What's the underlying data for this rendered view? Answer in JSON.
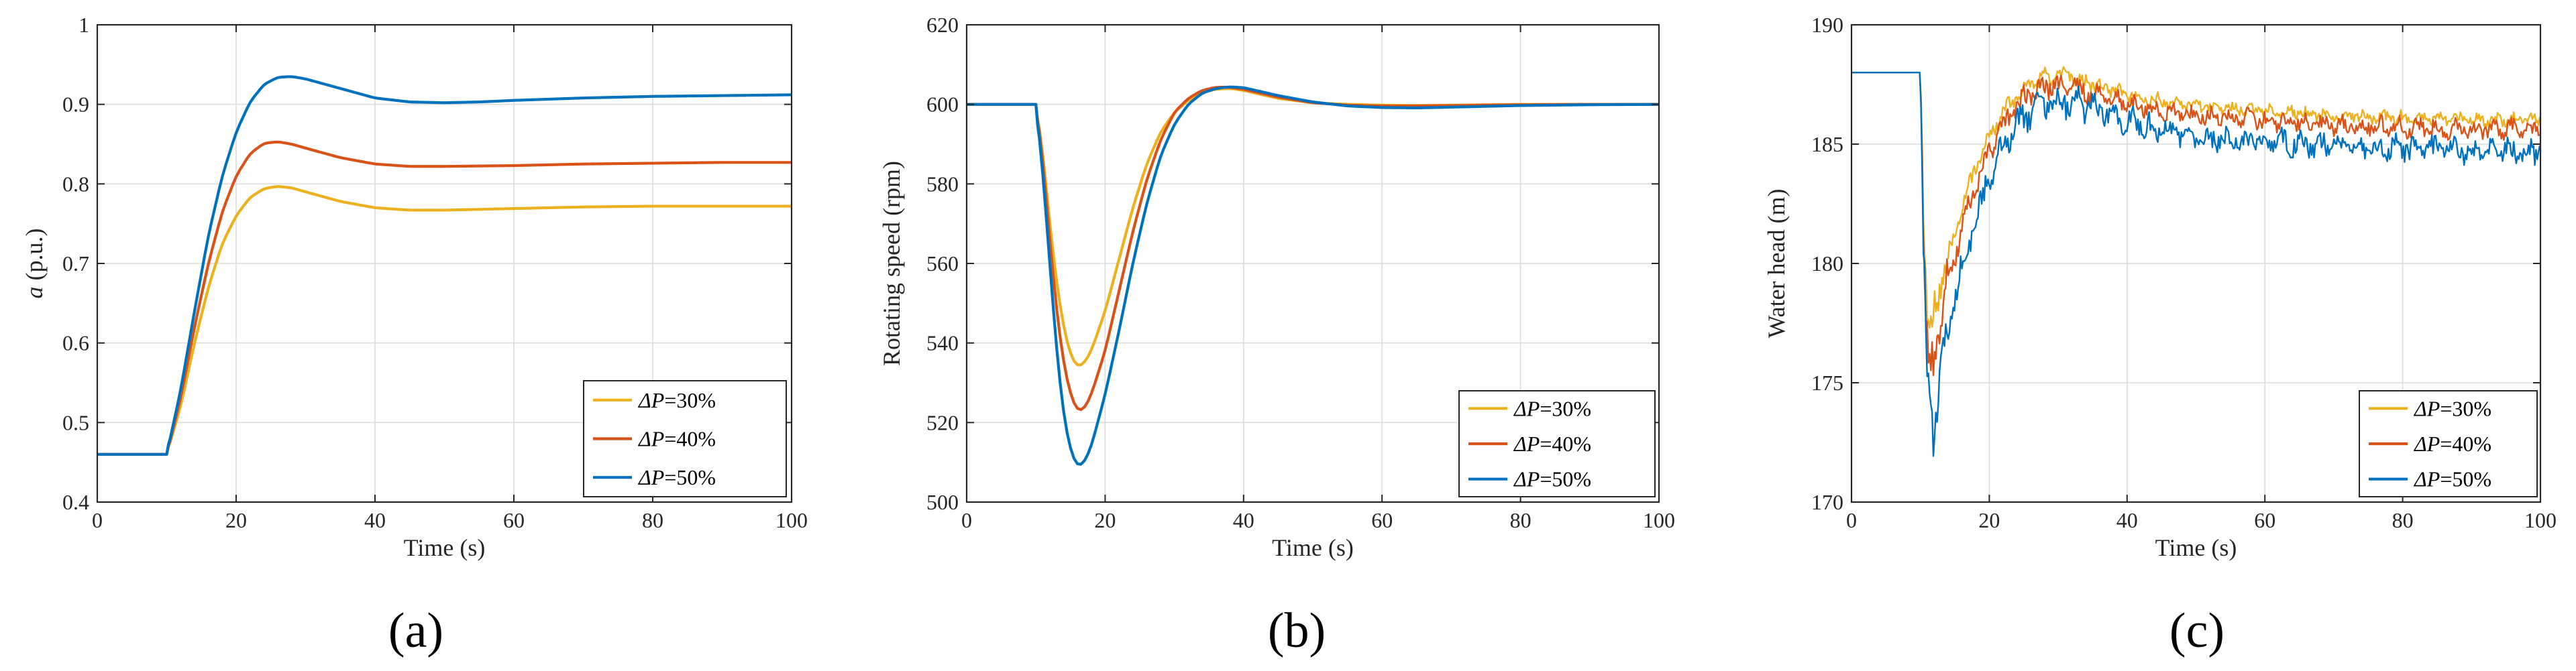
{
  "chart_data": [
    {
      "type": "line",
      "panel_label": "(a)",
      "title": "",
      "xlabel": "Time (s)",
      "ylabel_var": "a",
      "ylabel_unit": " (p.u.)",
      "xlim": [
        0,
        100
      ],
      "ylim": [
        0.4,
        1
      ],
      "xticks": [
        0,
        20,
        40,
        60,
        80,
        100
      ],
      "xtick_labels": [
        "0",
        "20",
        "40",
        "60",
        "80",
        "100"
      ],
      "yticks": [
        0.4,
        0.5,
        0.6,
        0.7,
        0.8,
        0.9,
        1
      ],
      "ytick_labels": [
        "0.4",
        "0.5",
        "0.6",
        "0.7",
        "0.8",
        "0.9",
        "1"
      ],
      "grid": true,
      "legend_position": "bottom-right",
      "series": [
        {
          "name": "ΔP=30%",
          "name_var": "ΔP",
          "name_rest": "=30%",
          "color": "#EDB120",
          "x": [
            0,
            10,
            12,
            14,
            16,
            18,
            20,
            22,
            24,
            26,
            28,
            30,
            35,
            40,
            45,
            50,
            60,
            70,
            80,
            90,
            100
          ],
          "y": [
            0.46,
            0.46,
            0.52,
            0.6,
            0.67,
            0.725,
            0.76,
            0.783,
            0.794,
            0.797,
            0.795,
            0.79,
            0.778,
            0.77,
            0.767,
            0.767,
            0.769,
            0.771,
            0.772,
            0.772,
            0.772
          ]
        },
        {
          "name": "ΔP=40%",
          "name_var": "ΔP",
          "name_rest": "=40%",
          "color": "#D95319",
          "x": [
            0,
            10,
            12,
            14,
            16,
            18,
            20,
            22,
            24,
            26,
            28,
            30,
            35,
            40,
            45,
            50,
            60,
            70,
            80,
            90,
            100
          ],
          "y": [
            0.46,
            0.46,
            0.53,
            0.62,
            0.7,
            0.765,
            0.81,
            0.838,
            0.851,
            0.853,
            0.85,
            0.845,
            0.833,
            0.825,
            0.822,
            0.822,
            0.823,
            0.825,
            0.826,
            0.827,
            0.827
          ]
        },
        {
          "name": "ΔP=50%",
          "name_var": "ΔP",
          "name_rest": "=50%",
          "color": "#0072BD",
          "x": [
            0,
            10,
            12,
            14,
            16,
            18,
            20,
            22,
            24,
            26,
            28,
            30,
            35,
            40,
            45,
            50,
            55,
            60,
            70,
            80,
            90,
            100
          ],
          "y": [
            0.46,
            0.46,
            0.54,
            0.64,
            0.735,
            0.81,
            0.865,
            0.903,
            0.925,
            0.934,
            0.935,
            0.932,
            0.92,
            0.908,
            0.903,
            0.902,
            0.903,
            0.905,
            0.908,
            0.91,
            0.911,
            0.912
          ]
        }
      ]
    },
    {
      "type": "line",
      "panel_label": "(b)",
      "title": "",
      "xlabel": "Time (s)",
      "ylabel": "Rotating speed (rpm)",
      "xlim": [
        0,
        100
      ],
      "ylim": [
        500,
        620
      ],
      "xticks": [
        0,
        20,
        40,
        60,
        80,
        100
      ],
      "xtick_labels": [
        "0",
        "20",
        "40",
        "60",
        "80",
        "100"
      ],
      "yticks": [
        500,
        520,
        540,
        560,
        580,
        600,
        620
      ],
      "ytick_labels": [
        "500",
        "520",
        "540",
        "560",
        "580",
        "600",
        "620"
      ],
      "grid": true,
      "legend_position": "bottom-right",
      "series": [
        {
          "name": "ΔP=30%",
          "name_var": "ΔP",
          "name_rest": "=30%",
          "color": "#EDB120",
          "x": [
            0,
            10,
            11,
            12,
            13,
            14,
            15,
            16,
            17,
            18,
            20,
            22,
            24,
            26,
            28,
            30,
            32,
            34,
            36,
            38,
            40,
            45,
            50,
            55,
            60,
            65,
            70,
            80,
            90,
            100
          ],
          "y": [
            600,
            600,
            588,
            570,
            555,
            544,
            537,
            534,
            535,
            538,
            548,
            561,
            574,
            585,
            593,
            598,
            601,
            603,
            603.8,
            604,
            603.5,
            601.5,
            600.4,
            600,
            599.8,
            599.7,
            599.8,
            600,
            600,
            600
          ]
        },
        {
          "name": "ΔP=40%",
          "name_var": "ΔP",
          "name_rest": "=40%",
          "color": "#D95319",
          "x": [
            0,
            10,
            11,
            12,
            13,
            14,
            15,
            16,
            17,
            18,
            20,
            22,
            24,
            26,
            28,
            30,
            32,
            34,
            36,
            38,
            40,
            45,
            50,
            55,
            60,
            65,
            70,
            80,
            90,
            100
          ],
          "y": [
            600,
            600,
            586,
            566,
            548,
            535,
            527,
            523,
            523.5,
            527,
            538,
            553,
            568,
            581,
            591,
            598,
            601.5,
            603.5,
            604.3,
            604.3,
            603.8,
            601.8,
            600.4,
            599.8,
            599.6,
            599.6,
            599.7,
            599.9,
            600,
            600
          ]
        },
        {
          "name": "ΔP=50%",
          "name_var": "ΔP",
          "name_rest": "=50%",
          "color": "#0072BD",
          "x": [
            0,
            10,
            11,
            12,
            13,
            14,
            15,
            16,
            17,
            18,
            20,
            22,
            24,
            26,
            28,
            30,
            32,
            34,
            36,
            38,
            40,
            45,
            50,
            55,
            60,
            65,
            70,
            80,
            90,
            100
          ],
          "y": [
            600,
            600,
            583,
            560,
            538,
            522,
            513,
            509,
            510,
            514,
            527,
            543,
            560,
            575,
            587,
            595,
            600,
            602.8,
            604,
            604.4,
            604.2,
            602.2,
            600.6,
            599.6,
            599.2,
            599.1,
            599.3,
            599.7,
            599.9,
            600
          ]
        }
      ]
    },
    {
      "type": "line",
      "panel_label": "(c)",
      "title": "",
      "xlabel": "Time (s)",
      "ylabel": "Water head (m)",
      "xlim": [
        0,
        100
      ],
      "ylim": [
        170,
        190
      ],
      "xticks": [
        0,
        20,
        40,
        60,
        80,
        100
      ],
      "xtick_labels": [
        "0",
        "20",
        "40",
        "60",
        "80",
        "100"
      ],
      "yticks": [
        170,
        175,
        180,
        185,
        190
      ],
      "ytick_labels": [
        "170",
        "175",
        "180",
        "185",
        "190"
      ],
      "grid": true,
      "legend_position": "bottom-right",
      "series": [
        {
          "name": "ΔP=30%",
          "name_var": "ΔP",
          "name_rest": "=30%",
          "color": "#EDB120",
          "x": [
            0,
            10,
            10.5,
            11,
            11.5,
            12,
            13,
            14,
            16,
            18,
            20,
            22,
            24,
            26,
            28,
            30,
            32,
            35,
            40,
            45,
            50,
            60,
            70,
            80,
            90,
            100
          ],
          "y": [
            188,
            188,
            182,
            177.5,
            177,
            178,
            179.2,
            180.3,
            182.3,
            184,
            185.3,
            186.3,
            187,
            187.5,
            187.8,
            187.9,
            187.8,
            187.5,
            187.1,
            186.8,
            186.6,
            186.4,
            186.2,
            186.1,
            186,
            186
          ]
        },
        {
          "name": "ΔP=40%",
          "name_var": "ΔP",
          "name_rest": "=40%",
          "color": "#D95319",
          "x": [
            0,
            10,
            10.5,
            11,
            11.5,
            12,
            13,
            14,
            16,
            18,
            20,
            22,
            24,
            26,
            28,
            30,
            32,
            35,
            40,
            45,
            50,
            60,
            70,
            80,
            90,
            100
          ],
          "y": [
            188,
            188,
            181,
            176,
            175.3,
            176.2,
            177.8,
            179.2,
            181.5,
            183.3,
            184.7,
            185.8,
            186.6,
            187.1,
            187.4,
            187.5,
            187.4,
            187.1,
            186.7,
            186.4,
            186.2,
            186,
            185.8,
            185.7,
            185.6,
            185.6
          ]
        },
        {
          "name": "ΔP=50%",
          "name_var": "ΔP",
          "name_rest": "=50%",
          "color": "#0072BD",
          "x": [
            0,
            10,
            10.5,
            11,
            11.5,
            12,
            13,
            14,
            16,
            18,
            20,
            22,
            24,
            26,
            28,
            30,
            32,
            35,
            40,
            45,
            50,
            60,
            70,
            80,
            90,
            100
          ],
          "y": [
            188,
            188,
            180,
            174.5,
            173.2,
            173.8,
            175.5,
            177.2,
            179.8,
            181.8,
            183.5,
            184.8,
            185.7,
            186.3,
            186.7,
            186.9,
            186.8,
            186.5,
            186,
            185.6,
            185.3,
            185.1,
            184.9,
            184.8,
            184.7,
            184.7
          ]
        }
      ]
    }
  ]
}
